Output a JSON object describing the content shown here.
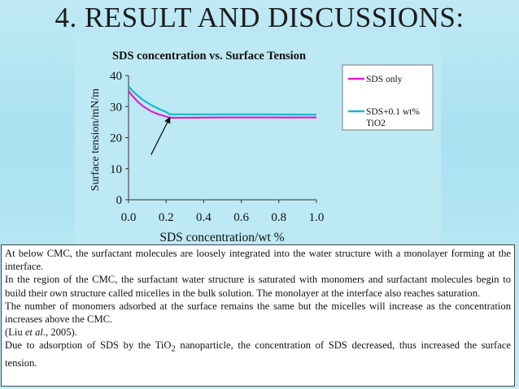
{
  "slide": {
    "title": "4. RESULT AND DISCUSSIONS:"
  },
  "chart_data": {
    "type": "line",
    "title": "SDS concentration vs. Surface Tension",
    "xlabel": "SDS concentration/wt %",
    "ylabel": "Surface tension/mN/m",
    "xlim": [
      0,
      1.0
    ],
    "ylim": [
      0,
      40
    ],
    "x_ticks": [
      "0.0",
      "0.2",
      "0.4",
      "0.6",
      "0.8",
      "1.0"
    ],
    "y_ticks": [
      "0",
      "10",
      "20",
      "30",
      "40"
    ],
    "grid": false,
    "legend_position": "right",
    "series": [
      {
        "name": "SDS only",
        "color": "#e020d0",
        "x": [
          0.0,
          0.02,
          0.05,
          0.08,
          0.12,
          0.16,
          0.2,
          0.22,
          0.3,
          0.5,
          0.7,
          1.0
        ],
        "y": [
          35.0,
          33.5,
          31.5,
          30.0,
          28.5,
          27.5,
          26.8,
          26.4,
          26.4,
          26.5,
          26.5,
          26.5
        ]
      },
      {
        "name": "SDS+0.1 wt% TiO2",
        "color": "#1ab8c8",
        "x": [
          0.0,
          0.02,
          0.05,
          0.08,
          0.12,
          0.16,
          0.2,
          0.22,
          0.3,
          0.5,
          0.7,
          1.0
        ],
        "y": [
          36.5,
          35.2,
          33.5,
          32.0,
          30.5,
          29.3,
          28.3,
          27.5,
          27.5,
          27.5,
          27.5,
          27.4
        ]
      }
    ],
    "annotations": [
      {
        "type": "arrow",
        "from": [
          0.12,
          14.5
        ],
        "to": [
          0.22,
          26.5
        ]
      }
    ]
  },
  "text": {
    "p1": "At below CMC, the surfactant molecules are loosely integrated into the water structure with a monolayer forming at the interface.",
    "p2": "In the region of the CMC, the surfactant water structure is saturated with monomers and surfactant molecules begin to build their own structure called micelles in the bulk solution.  The monolayer at the interface also reaches saturation.",
    "p3": "The number of monomers adsorbed at the surface remains the same but the micelles will increase as the concentration increases above the CMC.",
    "ref_open": "(Liu ",
    "ref_etal": "et al",
    "ref_close": "., 2005).",
    "p5_a": "Due to adsorption of SDS by the TiO",
    "p5_sub": "2",
    "p5_b": " nanoparticle, the concentration of SDS decreased, thus increased the surface tension."
  }
}
